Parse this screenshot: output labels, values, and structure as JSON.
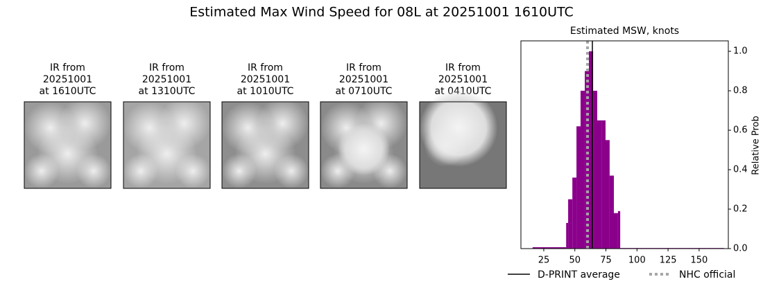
{
  "title": "Estimated Max Wind Speed for 08L at 20251001 1610UTC",
  "panels": [
    {
      "lines": [
        "IR from",
        "20251001",
        "at 1610UTC"
      ]
    },
    {
      "lines": [
        "IR from",
        "20251001",
        "at 1310UTC"
      ]
    },
    {
      "lines": [
        "IR from",
        "20251001",
        "at 1010UTC"
      ]
    },
    {
      "lines": [
        "IR from",
        "20251001",
        "at 0710UTC"
      ]
    },
    {
      "lines": [
        "IR from",
        "20251001",
        "at 0410UTC"
      ]
    }
  ],
  "chart_data": {
    "type": "histogram",
    "title": "Estimated MSW, knots",
    "y_label": "Relative Prob",
    "color": "#8b008b",
    "bins": [
      16,
      43,
      44.6,
      48,
      51.3,
      54.6,
      58,
      61.3,
      64.7,
      68,
      71.4,
      74.7,
      78,
      81.4,
      84.7,
      86.5,
      170
    ],
    "values": [
      0.007,
      0.13,
      0.25,
      0.36,
      0.62,
      0.8,
      0.9,
      1.0,
      0.8,
      0.65,
      0.65,
      0.55,
      0.37,
      0.18,
      0.19,
      0.003
    ],
    "xlim": [
      6.6,
      173.5
    ],
    "xticks": [
      25,
      50,
      75,
      100,
      125,
      150
    ],
    "ylim": [
      0,
      1.053
    ],
    "yticks": [
      0.0,
      0.2,
      0.4,
      0.6,
      0.8,
      1.0
    ],
    "lines": [
      {
        "name": "D-PRINT average",
        "value": 64.1,
        "color": "#000000",
        "style": "solid"
      },
      {
        "name": "NHC official",
        "value": 60.2,
        "color": "#a6a6a6",
        "style": "dotted"
      }
    ]
  }
}
